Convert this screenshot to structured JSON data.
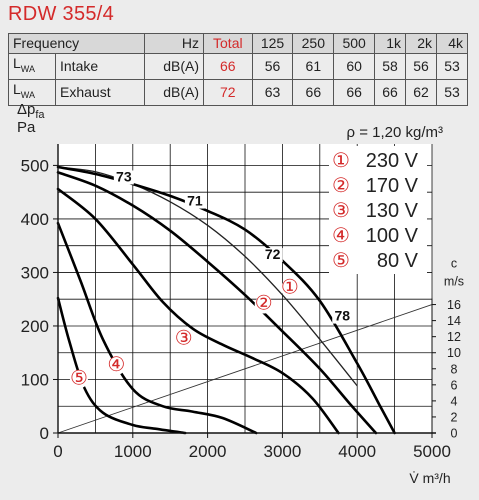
{
  "header": {
    "title": "RDW 355/4"
  },
  "noise_table": {
    "columns": [
      "Frequency",
      "",
      "Hz",
      "Total",
      "125",
      "250",
      "500",
      "1k",
      "2k",
      "4k"
    ],
    "rows": [
      {
        "label_main": "L",
        "label_sub": "WA",
        "name": "Intake",
        "unit": "dB(A)",
        "total": "66",
        "values": [
          "56",
          "61",
          "60",
          "58",
          "56",
          "53"
        ]
      },
      {
        "label_main": "L",
        "label_sub": "WA",
        "name": "Exhaust",
        "unit": "dB(A)",
        "total": "72",
        "values": [
          "63",
          "66",
          "66",
          "66",
          "62",
          "53"
        ]
      }
    ]
  },
  "chart_data": {
    "type": "line",
    "title": "",
    "xlabel": "V̇ m³/h",
    "ylabel_line1": "Δp",
    "ylabel_sub": "fa",
    "ylabel_line2": "Pa",
    "xlim": [
      0,
      5000
    ],
    "ylim": [
      0,
      540
    ],
    "xticks": [
      "0",
      "1000",
      "2000",
      "3000",
      "4000",
      "5000"
    ],
    "yticks": [
      "0",
      "100",
      "200",
      "300",
      "400",
      "500"
    ],
    "density_label": "ρ = 1,20 kg/m³",
    "velocity_axis": {
      "label_top": "c",
      "label_bottom": "m/s",
      "ticks": [
        "0",
        "2",
        "4",
        "6",
        "8",
        "10",
        "12",
        "14",
        "16"
      ],
      "range": [
        0,
        16
      ]
    },
    "velocity_line": [
      [
        0,
        0
      ],
      [
        5000,
        240
      ]
    ],
    "series": [
      {
        "name": "230 V",
        "marker": "①",
        "x": [
          0,
          500,
          1000,
          1500,
          2000,
          2500,
          3000,
          3500,
          4000,
          4300,
          4500
        ],
        "y": [
          497,
          484,
          465,
          443,
          415,
          380,
          322,
          247,
          130,
          52,
          0
        ]
      },
      {
        "name": "170 V",
        "marker": "②",
        "x": [
          0,
          500,
          1000,
          1500,
          2000,
          2500,
          3000,
          3500,
          3900,
          4250
        ],
        "y": [
          487,
          462,
          425,
          378,
          320,
          258,
          190,
          120,
          55,
          0
        ]
      },
      {
        "name": "130 V",
        "marker": "③",
        "x": [
          0,
          500,
          1000,
          1400,
          1800,
          2200,
          2600,
          3000,
          3400,
          3750
        ],
        "y": [
          456,
          400,
          315,
          245,
          195,
          165,
          140,
          112,
          65,
          0
        ]
      },
      {
        "name": "100 V",
        "marker": "④",
        "x": [
          0,
          300,
          600,
          1000,
          1400,
          1800,
          2200,
          2650
        ],
        "y": [
          392,
          285,
          175,
          82,
          50,
          40,
          28,
          0
        ]
      },
      {
        "name": "80 V",
        "marker": "⑤",
        "x": [
          0,
          150,
          350,
          600,
          1000,
          1300,
          1700
        ],
        "y": [
          252,
          172,
          85,
          38,
          15,
          8,
          0
        ]
      }
    ],
    "series_marker_positions": [
      [
        3100,
        270
      ],
      [
        2750,
        240
      ],
      [
        1680,
        175
      ],
      [
        780,
        125
      ],
      [
        280,
        100
      ]
    ],
    "sound_levels": [
      {
        "text": "73",
        "x": 880,
        "y": 470
      },
      {
        "text": "71",
        "x": 1830,
        "y": 425
      },
      {
        "text": "72",
        "x": 2870,
        "y": 325
      },
      {
        "text": "78",
        "x": 3800,
        "y": 210
      }
    ],
    "sound_curves": [
      {
        "x": [
          0,
          500,
          1000,
          1500,
          2000,
          2500,
          3000,
          3500,
          4000
        ],
        "y": [
          497,
          488,
          465,
          432,
          388,
          330,
          258,
          175,
          88
        ]
      }
    ]
  }
}
